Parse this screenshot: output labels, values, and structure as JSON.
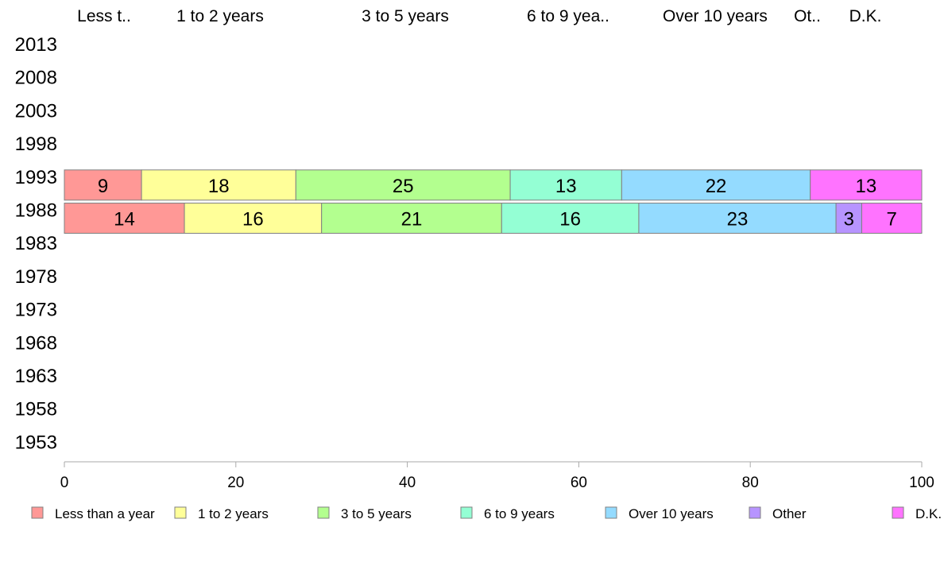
{
  "chart_data": {
    "type": "bar",
    "orientation": "horizontal",
    "stacked": true,
    "categories": [
      "2013",
      "2008",
      "2003",
      "1998",
      "1993",
      "1988",
      "1983",
      "1978",
      "1973",
      "1968",
      "1963",
      "1958",
      "1953"
    ],
    "column_headers": [
      "Less t..",
      "1 to 2 years",
      "3 to 5 years",
      "6 to 9 yea..",
      "Over 10 years",
      "Ot..",
      "D.K."
    ],
    "series": [
      {
        "name": "Less than a year",
        "color": "#ff9896",
        "values": [
          null,
          null,
          null,
          null,
          9,
          14,
          null,
          null,
          null,
          null,
          null,
          null,
          null
        ],
        "labels": [
          "",
          "",
          "",
          "",
          "9",
          "14",
          "",
          "",
          "",
          "",
          "",
          "",
          ""
        ]
      },
      {
        "name": "1 to 2 years",
        "color": "#ffff99",
        "values": [
          null,
          null,
          null,
          null,
          18,
          16,
          null,
          null,
          null,
          null,
          null,
          null,
          null
        ],
        "labels": [
          "",
          "",
          "",
          "",
          "18",
          "16",
          "",
          "",
          "",
          "",
          "",
          "",
          ""
        ]
      },
      {
        "name": "3 to 5 years",
        "color": "#b3ff8f",
        "values": [
          null,
          null,
          null,
          null,
          25,
          21,
          null,
          null,
          null,
          null,
          null,
          null,
          null
        ],
        "labels": [
          "",
          "",
          "",
          "",
          "25",
          "21",
          "",
          "",
          "",
          "",
          "",
          "",
          ""
        ]
      },
      {
        "name": "6 to 9 years",
        "color": "#94ffd4",
        "values": [
          null,
          null,
          null,
          null,
          13,
          16,
          null,
          null,
          null,
          null,
          null,
          null,
          null
        ],
        "labels": [
          "",
          "",
          "",
          "",
          "13",
          "16",
          "",
          "",
          "",
          "",
          "",
          "",
          ""
        ]
      },
      {
        "name": "Over 10 years",
        "color": "#94dbff",
        "values": [
          null,
          null,
          null,
          null,
          22,
          23,
          null,
          null,
          null,
          null,
          null,
          null,
          null
        ],
        "labels": [
          "",
          "",
          "",
          "",
          "22",
          "23",
          "",
          "",
          "",
          "",
          "",
          "",
          ""
        ]
      },
      {
        "name": "Other",
        "color": "#b794ff",
        "values": [
          null,
          null,
          null,
          null,
          0,
          3,
          null,
          null,
          null,
          null,
          null,
          null,
          null
        ],
        "labels": [
          "",
          "",
          "",
          "",
          "",
          "3",
          "",
          "",
          "",
          "",
          "",
          "",
          ""
        ]
      },
      {
        "name": "D.K.",
        "color": "#ff73ff",
        "values": [
          null,
          null,
          null,
          null,
          13,
          7,
          null,
          null,
          null,
          null,
          null,
          null,
          null
        ],
        "labels": [
          "",
          "",
          "",
          "",
          "13",
          "7",
          "",
          "",
          "",
          "",
          "",
          "",
          ""
        ]
      }
    ],
    "xlim": [
      0,
      100
    ],
    "xticks": [
      "0",
      "20",
      "40",
      "60",
      "80",
      "100"
    ],
    "grid": false,
    "legend": "bottom",
    "axis_color": "#aaaaaa",
    "bar_border_color": "#808080"
  }
}
